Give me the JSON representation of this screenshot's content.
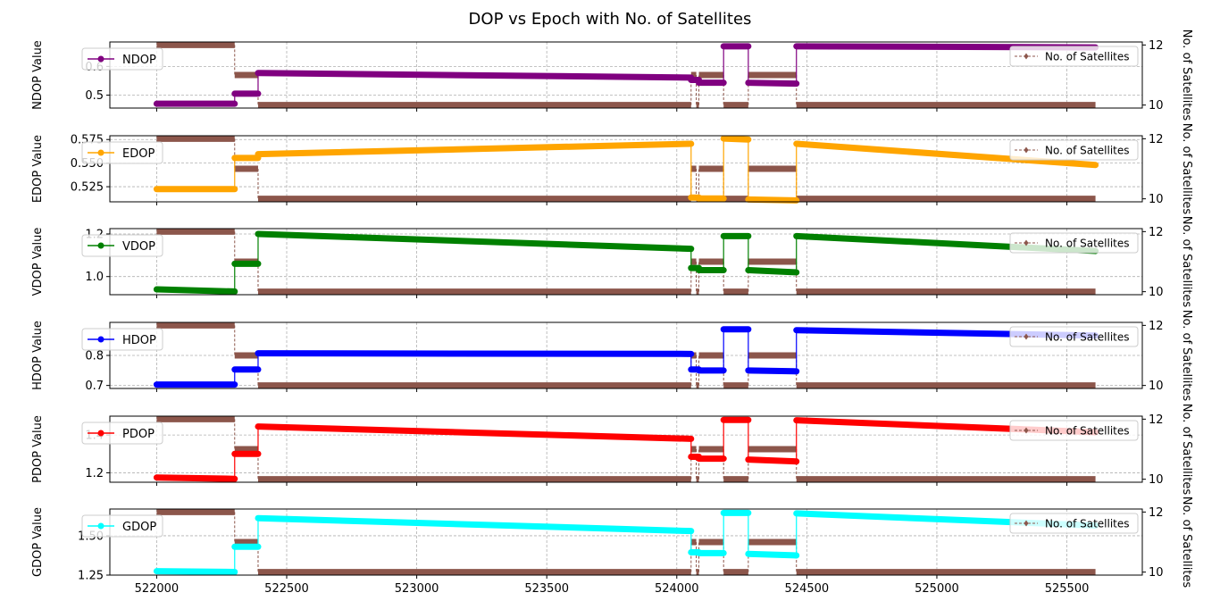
{
  "title": "DOP vs Epoch with No. of Satellites",
  "x_ticks": [
    522000,
    522500,
    523000,
    523500,
    524000,
    524500,
    525000,
    525500
  ],
  "xlim": [
    521820,
    525790
  ],
  "satellites_series": {
    "name": "No. of Satellites",
    "color": "#8c564b",
    "axis_label": "No. of Satellites",
    "ylim": [
      9.9,
      12.1
    ],
    "ticks": [
      10,
      12
    ],
    "segments": [
      {
        "x0": 522000,
        "x1": 522300,
        "value": 12
      },
      {
        "x0": 522300,
        "x1": 522390,
        "value": 11
      },
      {
        "x0": 522390,
        "x1": 524055,
        "value": 10
      },
      {
        "x0": 524055,
        "x1": 524075,
        "value": 11
      },
      {
        "x0": 524075,
        "x1": 524085,
        "value": 10
      },
      {
        "x0": 524085,
        "x1": 524180,
        "value": 11
      },
      {
        "x0": 524180,
        "x1": 524275,
        "value": 10
      },
      {
        "x0": 524275,
        "x1": 524460,
        "value": 11
      },
      {
        "x0": 524460,
        "x1": 525610,
        "value": 10
      }
    ]
  },
  "chart_data": [
    {
      "type": "line",
      "name": "NDOP",
      "ylabel": "NDOP Value",
      "color": "#800080",
      "ylim": [
        0.455,
        0.685
      ],
      "yticks": [
        0.5,
        0.6
      ],
      "ytick_labels": [
        "0.5",
        "0.6"
      ],
      "segments": [
        {
          "x0": 522000,
          "x1": 522300,
          "y0": 0.47,
          "y1": 0.47
        },
        {
          "x0": 522300,
          "x1": 522390,
          "y0": 0.505,
          "y1": 0.505
        },
        {
          "x0": 522390,
          "x1": 524055,
          "y0": 0.577,
          "y1": 0.561
        },
        {
          "x0": 524055,
          "x1": 524085,
          "y0": 0.553,
          "y1": 0.553
        },
        {
          "x0": 524085,
          "x1": 524180,
          "y0": 0.543,
          "y1": 0.543
        },
        {
          "x0": 524180,
          "x1": 524275,
          "y0": 0.67,
          "y1": 0.67
        },
        {
          "x0": 524275,
          "x1": 524460,
          "y0": 0.543,
          "y1": 0.54
        },
        {
          "x0": 524460,
          "x1": 525610,
          "y0": 0.67,
          "y1": 0.666
        }
      ]
    },
    {
      "type": "line",
      "name": "EDOP",
      "ylabel": "EDOP Value",
      "color": "#ffa500",
      "ylim": [
        0.509,
        0.579
      ],
      "yticks": [
        0.525,
        0.55,
        0.575
      ],
      "ytick_labels": [
        "0.525",
        "0.550",
        "0.575"
      ],
      "segments": [
        {
          "x0": 522000,
          "x1": 522300,
          "y0": 0.5225,
          "y1": 0.5225
        },
        {
          "x0": 522300,
          "x1": 522390,
          "y0": 0.5555,
          "y1": 0.5555
        },
        {
          "x0": 522390,
          "x1": 524055,
          "y0": 0.5595,
          "y1": 0.5705
        },
        {
          "x0": 524055,
          "x1": 524085,
          "y0": 0.5135,
          "y1": 0.5135
        },
        {
          "x0": 524085,
          "x1": 524180,
          "y0": 0.5125,
          "y1": 0.5125
        },
        {
          "x0": 524180,
          "x1": 524275,
          "y0": 0.576,
          "y1": 0.575
        },
        {
          "x0": 524275,
          "x1": 524460,
          "y0": 0.5115,
          "y1": 0.5105
        },
        {
          "x0": 524460,
          "x1": 525610,
          "y0": 0.5705,
          "y1": 0.548
        }
      ]
    },
    {
      "type": "line",
      "name": "VDOP",
      "ylabel": "VDOP Value",
      "color": "#008000",
      "ylim": [
        0.915,
        1.225
      ],
      "yticks": [
        1.0,
        1.2
      ],
      "ytick_labels": [
        "1.0",
        "1.2"
      ],
      "segments": [
        {
          "x0": 522000,
          "x1": 522300,
          "y0": 0.94,
          "y1": 0.93
        },
        {
          "x0": 522300,
          "x1": 522390,
          "y0": 1.06,
          "y1": 1.06
        },
        {
          "x0": 522390,
          "x1": 524055,
          "y0": 1.2,
          "y1": 1.13
        },
        {
          "x0": 524055,
          "x1": 524085,
          "y0": 1.04,
          "y1": 1.04
        },
        {
          "x0": 524085,
          "x1": 524180,
          "y0": 1.03,
          "y1": 1.03
        },
        {
          "x0": 524180,
          "x1": 524275,
          "y0": 1.19,
          "y1": 1.19
        },
        {
          "x0": 524275,
          "x1": 524460,
          "y0": 1.03,
          "y1": 1.02
        },
        {
          "x0": 524460,
          "x1": 525610,
          "y0": 1.19,
          "y1": 1.12
        }
      ]
    },
    {
      "type": "line",
      "name": "HDOP",
      "ylabel": "HDOP Value",
      "color": "#0000ff",
      "ylim": [
        0.69,
        0.91
      ],
      "yticks": [
        0.7,
        0.8
      ],
      "ytick_labels": [
        "0.7",
        "0.8"
      ],
      "segments": [
        {
          "x0": 522000,
          "x1": 522300,
          "y0": 0.703,
          "y1": 0.703
        },
        {
          "x0": 522300,
          "x1": 522390,
          "y0": 0.753,
          "y1": 0.753
        },
        {
          "x0": 522390,
          "x1": 524055,
          "y0": 0.807,
          "y1": 0.805
        },
        {
          "x0": 524055,
          "x1": 524085,
          "y0": 0.753,
          "y1": 0.753
        },
        {
          "x0": 524085,
          "x1": 524180,
          "y0": 0.75,
          "y1": 0.75
        },
        {
          "x0": 524180,
          "x1": 524275,
          "y0": 0.887,
          "y1": 0.887
        },
        {
          "x0": 524275,
          "x1": 524460,
          "y0": 0.75,
          "y1": 0.747
        },
        {
          "x0": 524460,
          "x1": 525610,
          "y0": 0.884,
          "y1": 0.866
        }
      ]
    },
    {
      "type": "line",
      "name": "PDOP",
      "ylabel": "PDOP Value",
      "color": "#ff0000",
      "ylim": [
        1.15,
        1.5
      ],
      "yticks": [
        1.2,
        1.4
      ],
      "ytick_labels": [
        "1.2",
        "1.4"
      ],
      "segments": [
        {
          "x0": 522000,
          "x1": 522300,
          "y0": 1.175,
          "y1": 1.168
        },
        {
          "x0": 522300,
          "x1": 522390,
          "y0": 1.3,
          "y1": 1.3
        },
        {
          "x0": 522390,
          "x1": 524055,
          "y0": 1.445,
          "y1": 1.38
        },
        {
          "x0": 524055,
          "x1": 524085,
          "y0": 1.285,
          "y1": 1.285
        },
        {
          "x0": 524085,
          "x1": 524180,
          "y0": 1.275,
          "y1": 1.275
        },
        {
          "x0": 524180,
          "x1": 524275,
          "y0": 1.48,
          "y1": 1.48
        },
        {
          "x0": 524275,
          "x1": 524460,
          "y0": 1.27,
          "y1": 1.26
        },
        {
          "x0": 524460,
          "x1": 525610,
          "y0": 1.478,
          "y1": 1.415
        }
      ]
    },
    {
      "type": "line",
      "name": "GDOP",
      "ylabel": "GDOP Value",
      "color": "#00ffff",
      "ylim": [
        1.25,
        1.67
      ],
      "yticks": [
        1.25,
        1.5
      ],
      "ytick_labels": [
        "1.25",
        "1.50"
      ],
      "segments": [
        {
          "x0": 522000,
          "x1": 522300,
          "y0": 1.275,
          "y1": 1.27
        },
        {
          "x0": 522300,
          "x1": 522390,
          "y0": 1.43,
          "y1": 1.43
        },
        {
          "x0": 522390,
          "x1": 524055,
          "y0": 1.612,
          "y1": 1.53
        },
        {
          "x0": 524055,
          "x1": 524085,
          "y0": 1.395,
          "y1": 1.395
        },
        {
          "x0": 524085,
          "x1": 524180,
          "y0": 1.39,
          "y1": 1.39
        },
        {
          "x0": 524180,
          "x1": 524275,
          "y0": 1.645,
          "y1": 1.645
        },
        {
          "x0": 524275,
          "x1": 524460,
          "y0": 1.385,
          "y1": 1.375
        },
        {
          "x0": 524460,
          "x1": 525610,
          "y0": 1.642,
          "y1": 1.565
        }
      ]
    }
  ]
}
